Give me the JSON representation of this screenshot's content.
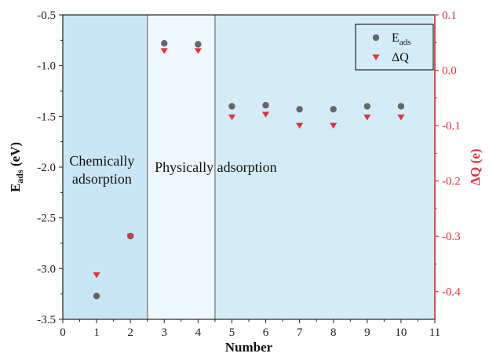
{
  "chart_data": {
    "type": "scatter",
    "xlabel": "Number",
    "ylabel_left": {
      "main": "E",
      "sub": "ads",
      "unit": " (eV)"
    },
    "ylabel_right": "ΔQ (e)",
    "xlim": [
      0,
      11
    ],
    "ylim_left": [
      -3.5,
      -0.5
    ],
    "ylim_right": [
      -0.45,
      0.1
    ],
    "x_ticks": [
      0,
      1,
      2,
      3,
      4,
      5,
      6,
      7,
      8,
      9,
      10,
      11
    ],
    "y_left_ticks": [
      "-0.5",
      "-1.0",
      "-1.5",
      "-2.0",
      "-2.5",
      "-3.0",
      "-3.5"
    ],
    "y_left_tick_values": [
      -0.5,
      -1.0,
      -1.5,
      -2.0,
      -2.5,
      -3.0,
      -3.5
    ],
    "y_right_ticks": [
      "0.1",
      "0.0",
      "-0.1",
      "-0.2",
      "-0.3",
      "-0.4"
    ],
    "y_right_tick_values": [
      0.1,
      0.0,
      -0.1,
      -0.2,
      -0.3,
      -0.4
    ],
    "regions": [
      {
        "label": "Chemically adsorption",
        "label_lines": [
          "Chemically",
          "adsorption"
        ],
        "x_start": 0,
        "x_end": 2.5,
        "color": "#c9e6f7"
      },
      {
        "label": "Physically adsorption",
        "label_lines": [
          "Physically adsorption"
        ],
        "x_start": 2.5,
        "x_end": 4.5,
        "color": "#eef8fd"
      },
      {
        "label": "",
        "label_lines": [],
        "x_start": 4.5,
        "x_end": 11,
        "color": "#d3ecf7"
      }
    ],
    "series": [
      {
        "name": "E_ads",
        "legend_main": "E",
        "legend_sub": "ads",
        "axis": "left",
        "marker": "circle",
        "color": "#666666",
        "x": [
          1,
          2,
          3,
          4,
          5,
          6,
          7,
          8,
          9,
          10
        ],
        "values": [
          -3.27,
          -2.68,
          -0.78,
          -0.79,
          -1.4,
          -1.39,
          -1.43,
          -1.43,
          -1.4,
          -1.4
        ]
      },
      {
        "name": "ΔQ",
        "legend_main": "ΔQ",
        "legend_sub": "",
        "axis": "right",
        "marker": "triangle-down",
        "color": "#e8303a",
        "x": [
          1,
          2,
          3,
          4,
          5,
          6,
          7,
          8,
          9,
          10
        ],
        "values": [
          -0.37,
          -0.3,
          0.035,
          0.035,
          -0.085,
          -0.08,
          -0.1,
          -0.1,
          -0.085,
          -0.085
        ]
      }
    ],
    "legend_position": "top-right",
    "colors": {
      "left_axis": "#222222",
      "right_axis": "#e8303a",
      "divider": "#888888"
    }
  }
}
